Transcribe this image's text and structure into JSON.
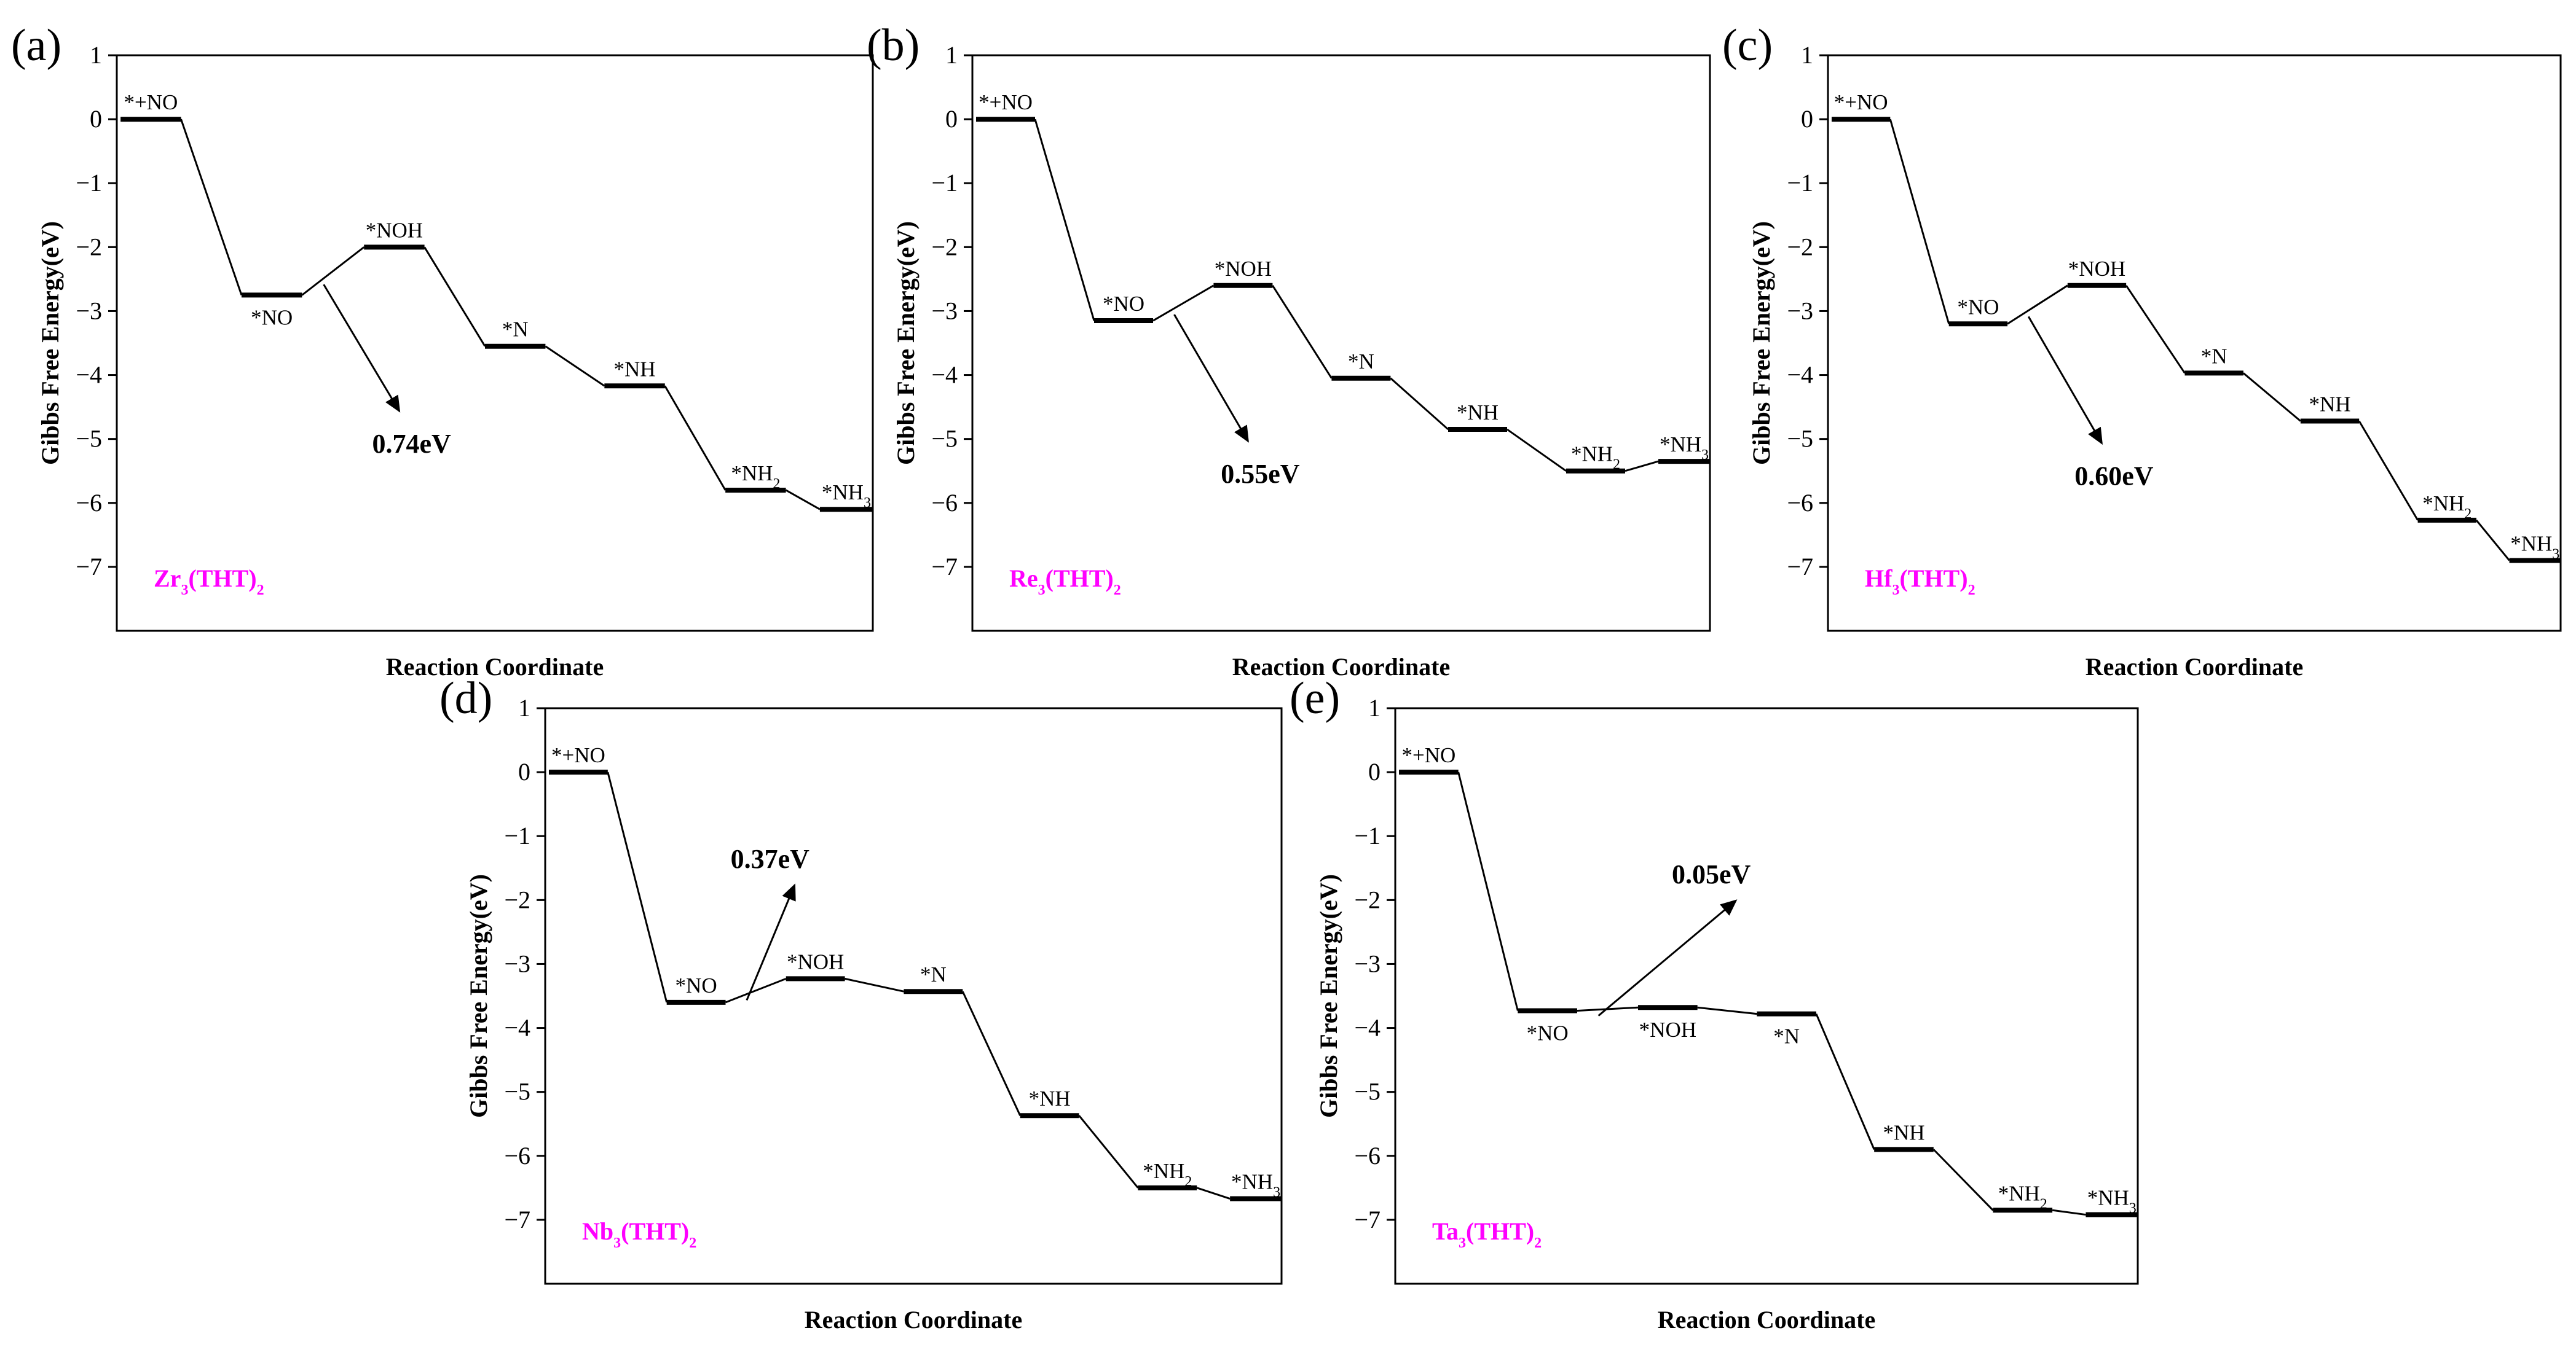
{
  "chart_data": [
    {
      "type": "line",
      "panel_label": "(a)",
      "material": {
        "base": "Zr",
        "sub1": "3",
        "mid": "(THT)",
        "sub2": "2"
      },
      "xlabel": "Reaction Coordinate",
      "ylabel": "Gibbs Free Energy(eV)",
      "ylim": [
        -8,
        1
      ],
      "yticks": [
        "1",
        "0",
        "−1",
        "−2",
        "−3",
        "−4",
        "−5",
        "−6",
        "−7"
      ],
      "states": [
        {
          "label": "*+NO",
          "sub": "",
          "energy": 0.0,
          "label_pos": "above"
        },
        {
          "label": "*NO",
          "sub": "",
          "energy": -2.75,
          "label_pos": "below"
        },
        {
          "label": "*NOH",
          "sub": "",
          "energy": -2.0,
          "label_pos": "above"
        },
        {
          "label": "*N",
          "sub": "",
          "energy": -3.55,
          "label_pos": "above"
        },
        {
          "label": "*NH",
          "sub": "",
          "energy": -4.17,
          "label_pos": "above"
        },
        {
          "label": "*NH",
          "sub": "2",
          "energy": -5.8,
          "label_pos": "above"
        },
        {
          "label": "*NH",
          "sub": "3",
          "energy": -6.1,
          "label_pos": "above"
        }
      ],
      "barrier": {
        "text": "0.74eV",
        "between": [
          1,
          2
        ],
        "direction": "down"
      }
    },
    {
      "type": "line",
      "panel_label": "(b)",
      "material": {
        "base": "Re",
        "sub1": "3",
        "mid": "(THT)",
        "sub2": "2"
      },
      "xlabel": "Reaction Coordinate",
      "ylabel": "Gibbs Free Energy(eV)",
      "ylim": [
        -8,
        1
      ],
      "yticks": [
        "1",
        "0",
        "−1",
        "−2",
        "−3",
        "−4",
        "−5",
        "−6",
        "−7"
      ],
      "states": [
        {
          "label": "*+NO",
          "sub": "",
          "energy": 0.0,
          "label_pos": "above"
        },
        {
          "label": "*NO",
          "sub": "",
          "energy": -3.15,
          "label_pos": "above"
        },
        {
          "label": "*NOH",
          "sub": "",
          "energy": -2.6,
          "label_pos": "above"
        },
        {
          "label": "*N",
          "sub": "",
          "energy": -4.05,
          "label_pos": "above"
        },
        {
          "label": "*NH",
          "sub": "",
          "energy": -4.85,
          "label_pos": "above"
        },
        {
          "label": "*NH",
          "sub": "2",
          "energy": -5.5,
          "label_pos": "above"
        },
        {
          "label": "*NH",
          "sub": "3",
          "energy": -5.35,
          "label_pos": "above"
        }
      ],
      "barrier": {
        "text": "0.55eV",
        "between": [
          1,
          2
        ],
        "direction": "down"
      }
    },
    {
      "type": "line",
      "panel_label": "(c)",
      "material": {
        "base": "Hf",
        "sub1": "3",
        "mid": "(THT)",
        "sub2": "2"
      },
      "xlabel": "Reaction Coordinate",
      "ylabel": "Gibbs Free Energy(eV)",
      "ylim": [
        -8,
        1
      ],
      "yticks": [
        "1",
        "0",
        "−1",
        "−2",
        "−3",
        "−4",
        "−5",
        "−6",
        "−7"
      ],
      "states": [
        {
          "label": "*+NO",
          "sub": "",
          "energy": 0.0,
          "label_pos": "above"
        },
        {
          "label": "*NO",
          "sub": "",
          "energy": -3.2,
          "label_pos": "above"
        },
        {
          "label": "*NOH",
          "sub": "",
          "energy": -2.6,
          "label_pos": "above"
        },
        {
          "label": "*N",
          "sub": "",
          "energy": -3.97,
          "label_pos": "above"
        },
        {
          "label": "*NH",
          "sub": "",
          "energy": -4.72,
          "label_pos": "above"
        },
        {
          "label": "*NH",
          "sub": "2",
          "energy": -6.27,
          "label_pos": "above"
        },
        {
          "label": "*NH",
          "sub": "3",
          "energy": -6.9,
          "label_pos": "above"
        }
      ],
      "barrier": {
        "text": "0.60eV",
        "between": [
          1,
          2
        ],
        "direction": "down"
      }
    },
    {
      "type": "line",
      "panel_label": "(d)",
      "material": {
        "base": "Nb",
        "sub1": "3",
        "mid": "(THT)",
        "sub2": "2"
      },
      "xlabel": "Reaction Coordinate",
      "ylabel": "Gibbs Free Energy(eV)",
      "ylim": [
        -8,
        1
      ],
      "yticks": [
        "1",
        "0",
        "−1",
        "−2",
        "−3",
        "−4",
        "−5",
        "−6",
        "−7"
      ],
      "states": [
        {
          "label": "*+NO",
          "sub": "",
          "energy": 0.0,
          "label_pos": "above"
        },
        {
          "label": "*NO",
          "sub": "",
          "energy": -3.6,
          "label_pos": "above"
        },
        {
          "label": "*NOH",
          "sub": "",
          "energy": -3.23,
          "label_pos": "above"
        },
        {
          "label": "*N",
          "sub": "",
          "energy": -3.43,
          "label_pos": "above"
        },
        {
          "label": "*NH",
          "sub": "",
          "energy": -5.37,
          "label_pos": "above"
        },
        {
          "label": "*NH",
          "sub": "2",
          "energy": -6.5,
          "label_pos": "above"
        },
        {
          "label": "*NH",
          "sub": "3",
          "energy": -6.67,
          "label_pos": "above"
        }
      ],
      "barrier": {
        "text": "0.37eV",
        "between": [
          1,
          2
        ],
        "direction": "up"
      }
    },
    {
      "type": "line",
      "panel_label": "(e)",
      "material": {
        "base": "Ta",
        "sub1": "3",
        "mid": "(THT)",
        "sub2": "2"
      },
      "xlabel": "Reaction Coordinate",
      "ylabel": "Gibbs Free Energy(eV)",
      "ylim": [
        -8,
        1
      ],
      "yticks": [
        "1",
        "0",
        "−1",
        "−2",
        "−3",
        "−4",
        "−5",
        "−6",
        "−7"
      ],
      "states": [
        {
          "label": "*+NO",
          "sub": "",
          "energy": 0.0,
          "label_pos": "above"
        },
        {
          "label": "*NO",
          "sub": "",
          "energy": -3.73,
          "label_pos": "below"
        },
        {
          "label": "*NOH",
          "sub": "",
          "energy": -3.68,
          "label_pos": "below"
        },
        {
          "label": "*N",
          "sub": "",
          "energy": -3.78,
          "label_pos": "below"
        },
        {
          "label": "*NH",
          "sub": "",
          "energy": -5.9,
          "label_pos": "above"
        },
        {
          "label": "*NH",
          "sub": "2",
          "energy": -6.85,
          "label_pos": "above"
        },
        {
          "label": "*NH",
          "sub": "3",
          "energy": -6.92,
          "label_pos": "above"
        }
      ],
      "barrier": {
        "text": "0.05eV",
        "between": [
          1,
          2
        ],
        "direction": "up"
      }
    }
  ]
}
